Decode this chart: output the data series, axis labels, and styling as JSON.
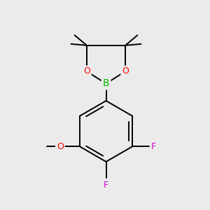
{
  "bg_color": "#ebebeb",
  "bond_color": "#000000",
  "bond_width": 1.4,
  "O_color": "#ff0000",
  "B_color": "#00bb00",
  "F_color": "#cc00cc",
  "methoxy_O_color": "#ff0000",
  "figsize": [
    3.0,
    3.0
  ],
  "dpi": 100,
  "xlim": [
    0,
    10
  ],
  "ylim": [
    0,
    10
  ]
}
